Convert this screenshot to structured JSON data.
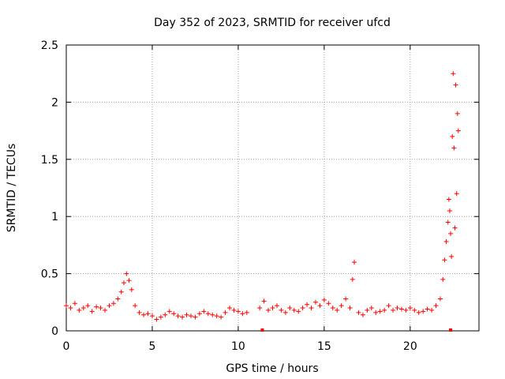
{
  "chart_data": {
    "type": "scatter",
    "title": "Day 352 of 2023, SRMTID for receiver ufcd",
    "xlabel": "GPS time / hours",
    "ylabel": "SRMTID / TECUs",
    "xlim": [
      0,
      24
    ],
    "ylim": [
      0,
      2.5
    ],
    "x_ticks": [
      0,
      5,
      10,
      15,
      20
    ],
    "x_tick_labels": [
      "0",
      "5",
      "10",
      "15",
      "20"
    ],
    "y_ticks": [
      0,
      0.5,
      1,
      1.5,
      2,
      2.5
    ],
    "y_tick_labels": [
      "0",
      "0.5",
      "1",
      "1.5",
      "2",
      "2.5"
    ],
    "grid": true,
    "marker": "+",
    "color": "#ff0000",
    "series": [
      {
        "name": "SRMTID",
        "x": [
          0.0,
          0.25,
          0.5,
          0.75,
          1.0,
          1.25,
          1.5,
          1.75,
          2.0,
          2.25,
          2.5,
          2.75,
          3.0,
          3.2,
          3.35,
          3.5,
          3.65,
          3.8,
          4.0,
          4.25,
          4.5,
          4.75,
          5.0,
          5.25,
          5.5,
          5.75,
          6.0,
          6.25,
          6.5,
          6.75,
          7.0,
          7.25,
          7.5,
          7.75,
          8.0,
          8.25,
          8.5,
          8.75,
          9.0,
          9.25,
          9.5,
          9.75,
          10.0,
          10.25,
          10.5,
          11.25,
          11.5,
          11.75,
          12.0,
          12.25,
          12.5,
          12.75,
          13.0,
          13.25,
          13.5,
          13.75,
          14.0,
          14.25,
          14.5,
          14.75,
          15.0,
          15.25,
          15.5,
          15.75,
          16.0,
          16.25,
          16.5,
          16.65,
          16.75,
          17.0,
          17.25,
          17.5,
          17.75,
          18.0,
          18.25,
          18.5,
          18.75,
          19.0,
          19.25,
          19.5,
          19.75,
          20.0,
          20.25,
          20.5,
          20.75,
          21.0,
          21.25,
          21.5,
          21.75,
          21.9,
          22.0,
          22.1,
          22.2,
          22.25,
          22.3,
          22.35,
          22.4,
          22.45,
          22.5,
          22.55,
          22.6,
          22.65,
          22.7,
          22.75,
          22.8
        ],
        "y": [
          0.22,
          0.2,
          0.24,
          0.18,
          0.2,
          0.22,
          0.17,
          0.21,
          0.2,
          0.18,
          0.22,
          0.24,
          0.28,
          0.34,
          0.42,
          0.5,
          0.44,
          0.36,
          0.22,
          0.16,
          0.14,
          0.15,
          0.13,
          0.1,
          0.12,
          0.14,
          0.17,
          0.15,
          0.13,
          0.12,
          0.14,
          0.13,
          0.12,
          0.15,
          0.17,
          0.15,
          0.14,
          0.13,
          0.12,
          0.16,
          0.2,
          0.18,
          0.17,
          0.15,
          0.16,
          0.2,
          0.26,
          0.18,
          0.2,
          0.22,
          0.18,
          0.16,
          0.2,
          0.18,
          0.17,
          0.2,
          0.23,
          0.2,
          0.25,
          0.22,
          0.27,
          0.24,
          0.2,
          0.18,
          0.22,
          0.28,
          0.2,
          0.45,
          0.6,
          0.16,
          0.14,
          0.18,
          0.2,
          0.16,
          0.17,
          0.18,
          0.22,
          0.18,
          0.2,
          0.19,
          0.18,
          0.2,
          0.18,
          0.16,
          0.17,
          0.19,
          0.18,
          0.22,
          0.28,
          0.45,
          0.62,
          0.78,
          0.95,
          1.15,
          1.05,
          0.85,
          0.65,
          1.7,
          2.25,
          1.6,
          0.9,
          2.15,
          1.2,
          1.9,
          1.75
        ]
      }
    ],
    "zero_markers_x": [
      11.4,
      22.35
    ]
  }
}
